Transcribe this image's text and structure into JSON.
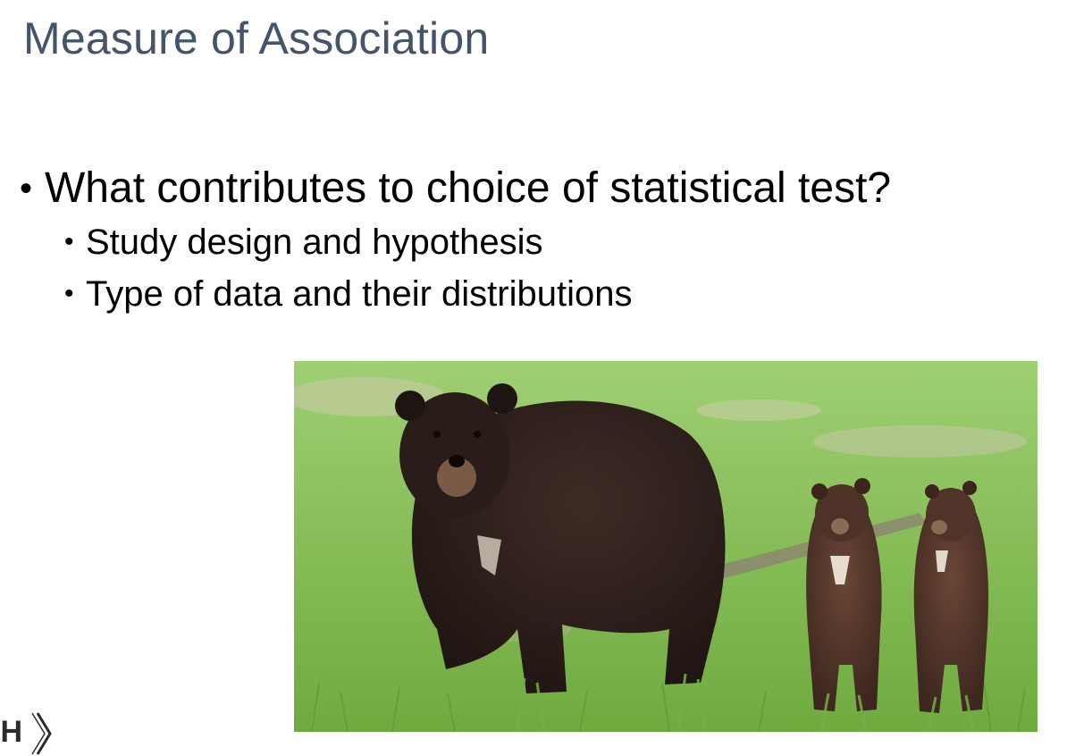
{
  "slide": {
    "title": "Measure of Association",
    "bullet_main": "What contributes to choice of statistical test?",
    "sub_bullets": [
      "Study design and hypothesis",
      "Type of data and their distributions"
    ],
    "bullet_glyph": "•"
  },
  "photo": {
    "subject": "black bear with two cubs standing in grass"
  },
  "logo": {
    "text": "IH"
  },
  "colors": {
    "title": "#44546a",
    "body_text": "#000000",
    "background": "#ffffff",
    "grass": "#8fc45e",
    "bear": "#2e1f1c",
    "cub": "#4b3129"
  }
}
